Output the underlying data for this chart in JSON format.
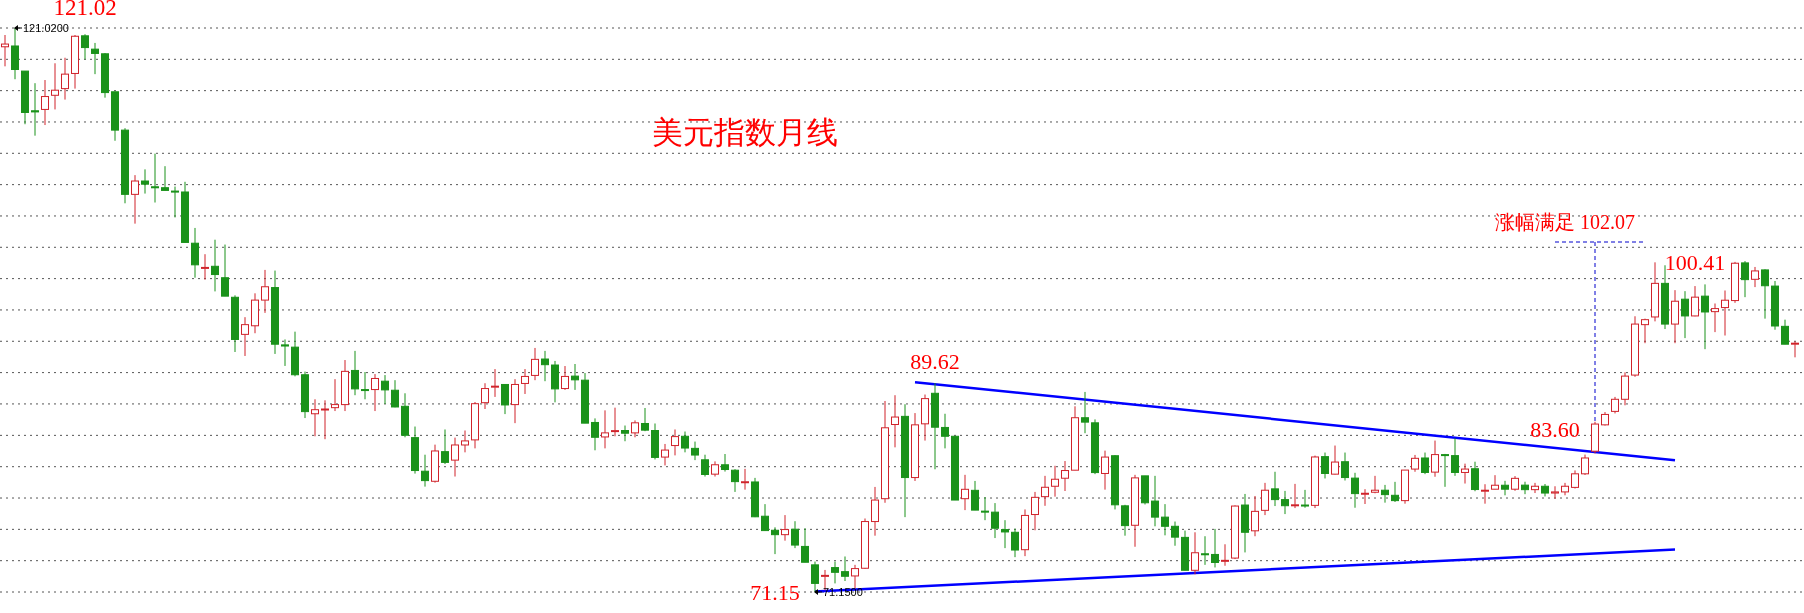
{
  "chart_data": {
    "type": "candlestick",
    "title": "美元指数月线",
    "categories": [
      null,
      null,
      null,
      null,
      null,
      null,
      null,
      null,
      null,
      null,
      null,
      null,
      null,
      null,
      null,
      null,
      null,
      null,
      null,
      null,
      null,
      null,
      null,
      null,
      null,
      null,
      null,
      null,
      null,
      null,
      null,
      null,
      null,
      null,
      null,
      null,
      null,
      null,
      null,
      null,
      null,
      null,
      null,
      null,
      null,
      null,
      null,
      null,
      null,
      null,
      null,
      null,
      null,
      null,
      null,
      null,
      null,
      null,
      null,
      null,
      null,
      null,
      null,
      null,
      null,
      null,
      null,
      null,
      null,
      null,
      null,
      null,
      null,
      null,
      null,
      null,
      null,
      null,
      null,
      null,
      null,
      null,
      null,
      null,
      null,
      null,
      null,
      null,
      null,
      null,
      null,
      null,
      null,
      null,
      null,
      null,
      null,
      null,
      null,
      null,
      null,
      null,
      null,
      null,
      null,
      null,
      null,
      null,
      null,
      null,
      null,
      null,
      null,
      null,
      null,
      null,
      null,
      null,
      null,
      null,
      null,
      null,
      null,
      null,
      null,
      null,
      null,
      null,
      null,
      null,
      null,
      null,
      null,
      null,
      null,
      null,
      null,
      null,
      null,
      null,
      null,
      null,
      null,
      null,
      null,
      null,
      null,
      null,
      null,
      null,
      null,
      null,
      null,
      null,
      null,
      null,
      null,
      null,
      null,
      null,
      null,
      null,
      null,
      null,
      null,
      null,
      null,
      null,
      null,
      null,
      null,
      null,
      null,
      null,
      null,
      null,
      null,
      null,
      null,
      null
    ],
    "ylim": [
      71.15,
      121.02
    ],
    "yticks": [
      {
        "value": 121.02,
        "label": null
      },
      {
        "value": 118.25,
        "label": null
      },
      {
        "value": 115.48,
        "label": null
      },
      {
        "value": 112.71,
        "label": null
      },
      {
        "value": 109.94,
        "label": null
      },
      {
        "value": 107.17,
        "label": null
      },
      {
        "value": 104.4,
        "label": null
      },
      {
        "value": 101.63,
        "label": null
      },
      {
        "value": 98.86,
        "label": null
      },
      {
        "value": 96.09,
        "label": null
      },
      {
        "value": 93.32,
        "label": null
      },
      {
        "value": 90.55,
        "label": null
      },
      {
        "value": 87.78,
        "label": null
      },
      {
        "value": 85.0,
        "label": null
      },
      {
        "value": 82.23,
        "label": null
      },
      {
        "value": 79.46,
        "label": null
      },
      {
        "value": 76.69,
        "label": null
      },
      {
        "value": 73.92,
        "label": null
      },
      {
        "value": 71.15,
        "label": null
      }
    ],
    "grid": "y",
    "ohlc": [
      [
        119.36,
        120.4,
        117.63,
        119.6
      ],
      [
        119.43,
        121.02,
        116.49,
        117.35
      ],
      [
        117.21,
        117.21,
        112.51,
        113.55
      ],
      [
        113.7,
        116.14,
        111.5,
        113.6
      ],
      [
        113.82,
        116.42,
        112.44,
        114.96
      ],
      [
        115.07,
        117.9,
        113.82,
        115.52
      ],
      [
        115.66,
        118.39,
        114.69,
        116.94
      ],
      [
        117.0,
        120.4,
        115.66,
        120.29
      ],
      [
        120.33,
        120.47,
        118.25,
        119.29
      ],
      [
        119.15,
        119.7,
        116.94,
        118.77
      ],
      [
        118.74,
        118.8,
        114.86,
        115.31
      ],
      [
        115.38,
        115.38,
        111.05,
        111.99
      ],
      [
        111.99,
        112.16,
        105.52,
        106.31
      ],
      [
        106.31,
        108.01,
        103.72,
        107.49
      ],
      [
        107.49,
        108.52,
        106.38,
        107.21
      ],
      [
        106.98,
        109.91,
        105.59,
        106.9
      ],
      [
        106.9,
        108.8,
        106.66,
        106.66
      ],
      [
        106.6,
        107.0,
        104.27,
        106.55
      ],
      [
        106.52,
        107.42,
        102.06,
        102.06
      ],
      [
        101.99,
        103.34,
        98.94,
        100.08
      ],
      [
        99.8,
        101.02,
        98.77,
        99.85
      ],
      [
        99.95,
        102.3,
        97.73,
        99.22
      ],
      [
        98.94,
        101.87,
        97.31,
        97.31
      ],
      [
        97.21,
        97.38,
        92.37,
        93.48
      ],
      [
        93.93,
        95.45,
        92.02,
        94.79
      ],
      [
        94.69,
        97.56,
        94.03,
        96.96
      ],
      [
        96.96,
        99.63,
        95.83,
        98.14
      ],
      [
        98.07,
        99.57,
        92.2,
        93.06
      ],
      [
        93.0,
        93.48,
        91.14,
        92.9
      ],
      [
        92.8,
        94.17,
        90.22,
        90.36
      ],
      [
        90.36,
        90.64,
        86.53,
        87.1
      ],
      [
        86.91,
        88.19,
        84.92,
        87.27
      ],
      [
        87.3,
        88.1,
        84.66,
        87.33
      ],
      [
        87.45,
        89.97,
        87.15,
        87.72
      ],
      [
        87.72,
        91.66,
        87.15,
        90.66
      ],
      [
        90.74,
        92.47,
        88.55,
        89.11
      ],
      [
        89.05,
        90.6,
        88.19,
        89.0
      ],
      [
        89.05,
        90.42,
        87.15,
        90.03
      ],
      [
        89.79,
        90.33,
        87.77,
        89.02
      ],
      [
        88.99,
        89.88,
        87.48,
        87.51
      ],
      [
        87.57,
        88.72,
        84.83,
        85.01
      ],
      [
        84.8,
        85.78,
        81.62,
        81.89
      ],
      [
        81.83,
        83.29,
        80.47,
        81.0
      ],
      [
        80.94,
        84.18,
        80.82,
        83.62
      ],
      [
        83.56,
        85.52,
        82.46,
        82.61
      ],
      [
        82.81,
        84.8,
        81.36,
        84.15
      ],
      [
        84.15,
        85.43,
        83.5,
        84.51
      ],
      [
        84.6,
        87.95,
        83.85,
        87.8
      ],
      [
        87.89,
        89.61,
        87.33,
        89.14
      ],
      [
        89.3,
        90.86,
        88.4,
        89.35
      ],
      [
        89.5,
        89.5,
        86.88,
        87.69
      ],
      [
        87.72,
        89.97,
        86.08,
        89.5
      ],
      [
        89.59,
        90.86,
        88.66,
        90.21
      ],
      [
        90.3,
        92.73,
        89.88,
        91.72
      ],
      [
        91.75,
        92.47,
        89.79,
        91.25
      ],
      [
        91.22,
        91.58,
        87.92,
        89.11
      ],
      [
        89.14,
        91.13,
        89.02,
        90.21
      ],
      [
        90.24,
        91.31,
        89.02,
        89.91
      ],
      [
        89.88,
        90.51,
        86.08,
        86.08
      ],
      [
        86.14,
        86.5,
        83.68,
        84.83
      ],
      [
        84.86,
        87.21,
        83.85,
        85.22
      ],
      [
        85.38,
        87.45,
        84.92,
        85.42
      ],
      [
        85.43,
        85.87,
        84.48,
        85.19
      ],
      [
        85.22,
        86.32,
        84.83,
        86.11
      ],
      [
        86.05,
        87.42,
        85.37,
        85.46
      ],
      [
        85.43,
        86.05,
        82.87,
        83.05
      ],
      [
        83.08,
        84.24,
        82.34,
        83.7
      ],
      [
        84.1,
        85.52,
        83.23,
        84.89
      ],
      [
        84.92,
        85.34,
        83.5,
        83.88
      ],
      [
        83.85,
        84.45,
        82.81,
        83.26
      ],
      [
        82.84,
        83.29,
        81.36,
        81.54
      ],
      [
        81.57,
        82.7,
        81.36,
        82.4
      ],
      [
        82.4,
        83.35,
        81.8,
        81.98
      ],
      [
        81.92,
        82.01,
        80.0,
        80.91
      ],
      [
        80.88,
        82.04,
        80.2,
        80.9
      ],
      [
        80.88,
        81.24,
        77.77,
        77.8
      ],
      [
        77.85,
        78.92,
        76.58,
        76.58
      ],
      [
        76.61,
        76.87,
        74.5,
        76.22
      ],
      [
        76.22,
        77.95,
        75.69,
        76.67
      ],
      [
        76.7,
        77.41,
        75.03,
        75.3
      ],
      [
        75.18,
        76.79,
        73.78,
        73.78
      ],
      [
        73.55,
        73.84,
        71.15,
        71.91
      ],
      [
        72.58,
        73.1,
        71.3,
        72.62
      ],
      [
        73.31,
        73.84,
        71.91,
        72.89
      ],
      [
        72.95,
        74.29,
        72.12,
        72.54
      ],
      [
        72.57,
        73.55,
        71.47,
        73.22
      ],
      [
        73.25,
        77.65,
        73.2,
        77.38
      ],
      [
        77.38,
        80.44,
        76.13,
        79.28
      ],
      [
        79.4,
        88.04,
        79.04,
        85.67
      ],
      [
        85.96,
        88.55,
        83.94,
        86.62
      ],
      [
        86.68,
        87.75,
        77.77,
        81.27
      ],
      [
        81.27,
        86.97,
        80.97,
        85.93
      ],
      [
        86.02,
        88.61,
        84.54,
        88.25
      ],
      [
        88.72,
        89.62,
        82.0,
        85.72
      ],
      [
        85.7,
        86.91,
        83.85,
        84.92
      ],
      [
        84.92,
        84.92,
        79.28,
        79.28
      ],
      [
        79.4,
        81.51,
        78.39,
        80.23
      ],
      [
        80.14,
        80.97,
        78.39,
        78.39
      ],
      [
        78.3,
        79.55,
        77.5,
        78.24
      ],
      [
        78.21,
        79.01,
        75.92,
        76.79
      ],
      [
        76.67,
        77.5,
        75.03,
        76.46
      ],
      [
        76.43,
        76.76,
        74.23,
        74.86
      ],
      [
        74.89,
        78.45,
        74.32,
        77.92
      ],
      [
        78.0,
        80.0,
        76.61,
        79.52
      ],
      [
        79.58,
        81.42,
        78.77,
        80.41
      ],
      [
        80.5,
        82.31,
        79.58,
        81.12
      ],
      [
        81.21,
        82.73,
        80.08,
        81.89
      ],
      [
        81.92,
        87.57,
        81.92,
        86.56
      ],
      [
        86.56,
        88.84,
        85.19,
        86.17
      ],
      [
        86.11,
        86.41,
        81.57,
        81.71
      ],
      [
        81.63,
        83.65,
        80.2,
        83.08
      ],
      [
        83.2,
        83.26,
        78.45,
        78.86
      ],
      [
        78.77,
        78.86,
        76.13,
        77.02
      ],
      [
        77.05,
        81.51,
        75.15,
        81.24
      ],
      [
        81.42,
        81.42,
        78.89,
        79.04
      ],
      [
        79.19,
        81.42,
        76.96,
        77.77
      ],
      [
        77.77,
        78.92,
        76.16,
        76.96
      ],
      [
        76.96,
        77.38,
        75.24,
        76.0
      ],
      [
        75.98,
        76.58,
        73.07,
        73.07
      ],
      [
        73.07,
        76.43,
        72.71,
        74.62
      ],
      [
        74.53,
        76.08,
        73.55,
        74.5
      ],
      [
        74.47,
        76.73,
        73.32,
        73.76
      ],
      [
        73.9,
        75.37,
        73.47,
        73.95
      ],
      [
        74.15,
        78.81,
        74.06,
        78.75
      ],
      [
        78.84,
        79.82,
        74.65,
        76.43
      ],
      [
        76.56,
        79.64,
        76.08,
        78.28
      ],
      [
        78.37,
        80.8,
        77.95,
        80.15
      ],
      [
        80.27,
        81.78,
        78.75,
        79.32
      ],
      [
        79.32,
        80.09,
        78.04,
        78.78
      ],
      [
        78.8,
        80.71,
        78.57,
        78.86
      ],
      [
        78.84,
        80.18,
        78.6,
        78.81
      ],
      [
        78.81,
        83.21,
        78.57,
        83.09
      ],
      [
        83.12,
        83.48,
        81.19,
        81.63
      ],
      [
        81.57,
        84.1,
        81.54,
        82.64
      ],
      [
        82.67,
        83.48,
        81.01,
        81.27
      ],
      [
        81.22,
        81.69,
        78.6,
        79.85
      ],
      [
        79.85,
        80.24,
        78.93,
        79.88
      ],
      [
        79.97,
        81.42,
        79.88,
        80.15
      ],
      [
        80.15,
        80.62,
        79.05,
        79.76
      ],
      [
        79.7,
        80.89,
        79.11,
        79.23
      ],
      [
        79.23,
        81.93,
        78.96,
        81.93
      ],
      [
        82.02,
        83.27,
        81.78,
        82.97
      ],
      [
        83.0,
        83.48,
        81.57,
        81.72
      ],
      [
        81.75,
        84.54,
        81.34,
        83.3
      ],
      [
        83.3,
        83.36,
        80.45,
        83.27
      ],
      [
        83.21,
        84.75,
        81.42,
        81.72
      ],
      [
        81.72,
        82.5,
        80.74,
        82.02
      ],
      [
        82.05,
        82.67,
        80.06,
        80.21
      ],
      [
        80.14,
        80.68,
        78.96,
        80.15
      ],
      [
        80.24,
        81.48,
        80.24,
        80.59
      ],
      [
        80.59,
        80.98,
        79.7,
        80.24
      ],
      [
        80.24,
        81.4,
        80.1,
        81.2
      ],
      [
        80.6,
        80.9,
        79.8,
        80.2
      ],
      [
        80.2,
        80.8,
        79.9,
        80.5
      ],
      [
        80.5,
        80.7,
        79.6,
        79.9
      ],
      [
        79.9,
        80.5,
        79.4,
        80.0
      ],
      [
        80.0,
        80.8,
        79.7,
        80.5
      ],
      [
        80.4,
        81.9,
        80.3,
        81.6
      ],
      [
        81.6,
        83.3,
        81.5,
        83.0
      ],
      [
        83.6,
        86.2,
        83.4,
        86.0
      ],
      [
        85.93,
        87.06,
        85.87,
        86.85
      ],
      [
        87.12,
        88.4,
        86.94,
        88.19
      ],
      [
        88.19,
        90.57,
        87.66,
        90.24
      ],
      [
        90.33,
        95.53,
        90.18,
        94.84
      ],
      [
        94.79,
        95.32,
        93.15,
        95.23
      ],
      [
        95.47,
        100.3,
        95.08,
        98.44
      ],
      [
        98.44,
        100.04,
        94.4,
        94.84
      ],
      [
        94.84,
        97.84,
        93.15,
        96.86
      ],
      [
        97.04,
        97.75,
        93.6,
        95.56
      ],
      [
        95.56,
        98.2,
        95.53,
        97.22
      ],
      [
        97.31,
        98.35,
        92.62,
        95.91
      ],
      [
        95.94,
        96.66,
        94.13,
        96.21
      ],
      [
        96.3,
        97.81,
        93.83,
        96.95
      ],
      [
        96.92,
        100.34,
        96.72,
        100.22
      ],
      [
        100.25,
        100.41,
        97.22,
        98.77
      ],
      [
        98.8,
        99.89,
        98.11,
        99.54
      ],
      [
        99.63,
        99.69,
        95.32,
        98.23
      ],
      [
        98.2,
        98.65,
        94.34,
        94.67
      ],
      [
        94.64,
        95.23,
        93.06,
        93.06
      ],
      [
        93.1,
        93.3,
        91.9,
        93.15
      ]
    ],
    "series": [
      {
        "type": "line",
        "color": "#0000ff",
        "values": [
          null,
          null,
          null,
          null,
          null,
          null,
          null,
          null,
          null,
          null,
          null,
          null,
          null,
          null,
          null,
          null,
          null,
          null,
          null,
          null,
          null,
          null,
          null,
          null,
          null,
          null,
          null,
          null,
          null,
          null,
          null,
          null,
          null,
          null,
          null,
          null,
          null,
          null,
          null,
          null,
          null,
          null,
          null,
          null,
          null,
          null,
          null,
          null,
          null,
          null,
          null,
          null,
          null,
          null,
          null,
          null,
          null,
          null,
          null,
          null,
          null,
          null,
          null,
          null,
          null,
          null,
          null,
          null,
          null,
          null,
          null,
          null,
          null,
          null,
          null,
          null,
          null,
          null,
          null,
          null,
          null,
          null,
          null,
          null,
          null,
          null,
          null,
          null,
          null,
          null,
          null,
          89.7,
          null,
          null,
          null,
          null,
          null,
          null,
          null,
          null,
          null,
          null,
          null,
          null,
          null,
          null,
          null,
          null,
          null,
          null,
          null,
          null,
          null,
          null,
          null,
          null,
          null,
          null,
          null,
          null,
          null,
          null,
          null,
          null,
          null,
          null,
          null,
          null,
          null,
          null,
          null,
          null,
          null,
          null,
          null,
          null,
          null,
          null,
          null,
          null,
          null,
          null,
          null,
          null,
          null,
          null,
          null,
          null,
          null,
          null,
          null,
          null,
          null,
          null,
          null,
          null,
          null,
          null,
          null,
          null,
          null,
          null,
          null,
          null,
          null,
          null,
          null,
          82.8,
          null,
          null,
          null,
          null,
          null,
          null,
          null,
          null,
          null,
          null,
          null,
          null
        ]
      },
      {
        "type": "line",
        "color": "#0000ff",
        "values": [
          null,
          null,
          null,
          null,
          null,
          null,
          null,
          null,
          null,
          null,
          null,
          null,
          null,
          null,
          null,
          null,
          null,
          null,
          null,
          null,
          null,
          null,
          null,
          null,
          null,
          null,
          null,
          null,
          null,
          null,
          null,
          null,
          null,
          null,
          null,
          null,
          null,
          null,
          null,
          null,
          null,
          null,
          null,
          null,
          null,
          null,
          null,
          null,
          null,
          null,
          null,
          null,
          null,
          null,
          null,
          null,
          null,
          null,
          null,
          null,
          null,
          null,
          null,
          null,
          null,
          null,
          null,
          null,
          null,
          null,
          null,
          null,
          null,
          null,
          null,
          null,
          null,
          null,
          null,
          null,
          null,
          71.2,
          null,
          null,
          null,
          null,
          null,
          null,
          null,
          null,
          null,
          null,
          null,
          null,
          null,
          null,
          null,
          null,
          null,
          null,
          null,
          null,
          null,
          null,
          null,
          null,
          null,
          null,
          null,
          null,
          null,
          null,
          null,
          null,
          null,
          null,
          null,
          null,
          null,
          null,
          null,
          null,
          null,
          null,
          null,
          null,
          null,
          null,
          null,
          null,
          null,
          null,
          null,
          null,
          null,
          null,
          null,
          null,
          null,
          null,
          null,
          null,
          null,
          null,
          null,
          null,
          null,
          null,
          null,
          null,
          null,
          null,
          null,
          null,
          null,
          null,
          null,
          null,
          null,
          null,
          null,
          null,
          null,
          null,
          null,
          null,
          null,
          74.9,
          null,
          null,
          null,
          null,
          null,
          null,
          null,
          null,
          null,
          null,
          null,
          null
        ]
      }
    ],
    "annotations": [
      "121.02",
      "121.0200",
      "89.62",
      "83.60",
      "涨幅满足 102.07",
      "100.41",
      "71.15",
      "71.1500"
    ]
  }
}
